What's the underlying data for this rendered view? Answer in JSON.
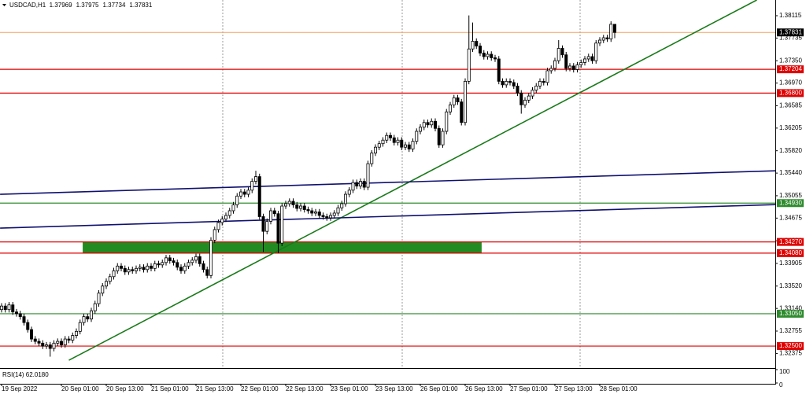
{
  "chart_data": {
    "type": "candlestick",
    "title": "USDCAD,H1",
    "categories": [
      "19 Sep 2022",
      null,
      null,
      null,
      null,
      null,
      null,
      null,
      null,
      null,
      null,
      null,
      null,
      null,
      null,
      null,
      "20 Sep 01:00",
      null,
      null,
      null,
      null,
      null,
      null,
      null,
      null,
      null,
      null,
      null,
      "20 Sep 13:00",
      null,
      null,
      null,
      null,
      null,
      null,
      null,
      null,
      null,
      null,
      null,
      "21 Sep 01:00",
      null,
      null,
      null,
      null,
      null,
      null,
      null,
      null,
      null,
      null,
      null,
      "21 Sep 13:00",
      null,
      null,
      null,
      null,
      null,
      null,
      null,
      null,
      null,
      null,
      null,
      "22 Sep 01:00",
      null,
      null,
      null,
      null,
      null,
      null,
      null,
      null,
      null,
      null,
      null,
      "22 Sep 13:00",
      null,
      null,
      null,
      null,
      null,
      null,
      null,
      null,
      null,
      null,
      null,
      "23 Sep 01:00",
      null,
      null,
      null,
      null,
      null,
      null,
      null,
      null,
      null,
      null,
      null,
      "23 Sep 13:00",
      null,
      null,
      null,
      null,
      null,
      null,
      null,
      null,
      null,
      null,
      null,
      "26 Sep 01:00",
      null,
      null,
      null,
      null,
      null,
      null,
      null,
      null,
      null,
      null,
      null,
      "26 Sep 13:00",
      null,
      null,
      null,
      null,
      null,
      null,
      null,
      null,
      null,
      null,
      null,
      "27 Sep 01:00",
      null,
      null,
      null,
      null,
      null,
      null,
      null,
      null,
      null,
      null,
      null,
      "27 Sep 13:00",
      null,
      null,
      null,
      null,
      null,
      null,
      null,
      null,
      null,
      null,
      null,
      "28 Sep 01:00",
      null,
      null,
      null,
      null
    ],
    "open": [
      1.3312,
      1.3318,
      1.3312,
      1.332,
      1.3308,
      1.3305,
      1.33,
      1.329,
      1.3278,
      1.3262,
      1.3258,
      1.3255,
      1.325,
      1.3252,
      1.3246,
      1.3255,
      1.3258,
      1.3252,
      1.3262,
      1.326,
      1.3268,
      1.3275,
      1.329,
      1.33,
      1.3296,
      1.331,
      1.3322,
      1.334,
      1.3352,
      1.336,
      1.3368,
      1.3378,
      1.3386,
      1.3382,
      1.3376,
      1.338,
      1.3378,
      1.3382,
      1.3384,
      1.338,
      1.3386,
      1.3382,
      1.339,
      1.3388,
      1.3392,
      1.34,
      1.3395,
      1.3392,
      1.3384,
      1.3378,
      1.3386,
      1.3392,
      1.3396,
      1.3402,
      1.339,
      1.338,
      1.337,
      1.343,
      1.3448,
      1.346,
      1.3466,
      1.3472,
      1.348,
      1.349,
      1.3505,
      1.3512,
      1.3508,
      1.3515,
      1.353,
      1.3538,
      1.347,
      1.3445,
      1.3462,
      1.348,
      1.3475,
      1.3425,
      1.3488,
      1.3492,
      1.3496,
      1.349,
      1.3484,
      1.3488,
      1.3482,
      1.348,
      1.3476,
      1.3478,
      1.3472,
      1.347,
      1.3468,
      1.3472,
      1.3476,
      1.3485,
      1.3492,
      1.3508,
      1.3515,
      1.3528,
      1.3522,
      1.353,
      1.352,
      1.356,
      1.3578,
      1.3588,
      1.3594,
      1.36,
      1.3608,
      1.3604,
      1.3596,
      1.36,
      1.3588,
      1.3592,
      1.3585,
      1.3598,
      1.3615,
      1.3622,
      1.363,
      1.3626,
      1.3632,
      1.362,
      1.3592,
      1.3615,
      1.3648,
      1.366,
      1.3672,
      1.3665,
      1.363,
      1.37,
      1.3755,
      1.3768,
      1.376,
      1.3748,
      1.3742,
      1.3746,
      1.374,
      1.3738,
      1.37,
      1.3694,
      1.37,
      1.3698,
      1.3692,
      1.368,
      1.366,
      1.3668,
      1.3675,
      1.3685,
      1.3692,
      1.37,
      1.3698,
      1.3718,
      1.3722,
      1.3735,
      1.3756,
      1.3745,
      1.3722,
      1.3726,
      1.372,
      1.3728,
      1.3732,
      1.3738,
      1.3742,
      1.3735,
      1.3765,
      1.377,
      1.3774,
      1.3772,
      1.37969
    ],
    "high": [
      1.3323,
      1.3323,
      1.3325,
      1.3325,
      1.3313,
      1.331,
      1.3305,
      1.3295,
      1.3283,
      1.3267,
      1.3263,
      1.326,
      1.3257,
      1.3257,
      1.326,
      1.3263,
      1.3263,
      1.3267,
      1.3267,
      1.3273,
      1.328,
      1.3295,
      1.3305,
      1.3305,
      1.3315,
      1.3327,
      1.3345,
      1.3357,
      1.3365,
      1.3373,
      1.3383,
      1.3391,
      1.3391,
      1.3387,
      1.3385,
      1.3385,
      1.3387,
      1.3389,
      1.3389,
      1.3391,
      1.3391,
      1.3395,
      1.3395,
      1.3397,
      1.3405,
      1.3405,
      1.34,
      1.3397,
      1.3389,
      1.3391,
      1.3397,
      1.3401,
      1.3407,
      1.3407,
      1.3395,
      1.3385,
      1.3435,
      1.3453,
      1.3465,
      1.3471,
      1.3477,
      1.3485,
      1.3495,
      1.351,
      1.3517,
      1.3517,
      1.352,
      1.3535,
      1.3548,
      1.3543,
      1.3475,
      1.3467,
      1.3485,
      1.3485,
      1.348,
      1.3493,
      1.3497,
      1.3501,
      1.3501,
      1.3495,
      1.3493,
      1.3493,
      1.3487,
      1.3485,
      1.3483,
      1.3483,
      1.3477,
      1.3475,
      1.3477,
      1.3481,
      1.349,
      1.3497,
      1.3513,
      1.352,
      1.3533,
      1.3533,
      1.3535,
      1.3535,
      1.3565,
      1.3583,
      1.3593,
      1.3599,
      1.3605,
      1.3613,
      1.3613,
      1.3609,
      1.3605,
      1.3605,
      1.3597,
      1.3597,
      1.3603,
      1.362,
      1.3627,
      1.3635,
      1.3635,
      1.3637,
      1.3637,
      1.3625,
      1.362,
      1.3653,
      1.3665,
      1.3677,
      1.3677,
      1.367,
      1.3705,
      1.3812,
      1.38,
      1.3773,
      1.3765,
      1.3753,
      1.3751,
      1.3751,
      1.3745,
      1.3743,
      1.3705,
      1.3705,
      1.3705,
      1.3703,
      1.3697,
      1.3685,
      1.3673,
      1.368,
      1.369,
      1.3697,
      1.3705,
      1.3705,
      1.3723,
      1.3727,
      1.374,
      1.377,
      1.3761,
      1.375,
      1.3731,
      1.3731,
      1.3733,
      1.3737,
      1.3743,
      1.3747,
      1.3747,
      1.377,
      1.3775,
      1.3779,
      1.3779,
      1.3802,
      1.37975
    ],
    "low": [
      1.3307,
      1.3307,
      1.3307,
      1.3303,
      1.33,
      1.3295,
      1.3285,
      1.3273,
      1.3257,
      1.3253,
      1.325,
      1.3245,
      1.3245,
      1.3232,
      1.3241,
      1.325,
      1.3247,
      1.3247,
      1.3255,
      1.3255,
      1.3263,
      1.327,
      1.3285,
      1.3291,
      1.3291,
      1.3305,
      1.3317,
      1.3335,
      1.3347,
      1.3355,
      1.3363,
      1.3373,
      1.3377,
      1.3371,
      1.3371,
      1.3373,
      1.3373,
      1.3377,
      1.3375,
      1.3375,
      1.3377,
      1.3377,
      1.3383,
      1.3383,
      1.3387,
      1.339,
      1.3387,
      1.3379,
      1.3373,
      1.3373,
      1.3381,
      1.3387,
      1.3391,
      1.3385,
      1.3375,
      1.3365,
      1.3365,
      1.3425,
      1.3443,
      1.3455,
      1.3461,
      1.3467,
      1.3475,
      1.3485,
      1.35,
      1.3503,
      1.3503,
      1.351,
      1.3525,
      1.3465,
      1.341,
      1.344,
      1.3457,
      1.347,
      1.3408,
      1.342,
      1.3483,
      1.3487,
      1.3485,
      1.3479,
      1.3479,
      1.3477,
      1.3475,
      1.3471,
      1.3471,
      1.3467,
      1.3465,
      1.3463,
      1.3463,
      1.3467,
      1.3471,
      1.348,
      1.3487,
      1.3503,
      1.351,
      1.3517,
      1.3517,
      1.3515,
      1.3515,
      1.3555,
      1.3573,
      1.3583,
      1.3589,
      1.3595,
      1.3599,
      1.3591,
      1.3591,
      1.3583,
      1.3583,
      1.358,
      1.358,
      1.3593,
      1.361,
      1.3617,
      1.3621,
      1.3621,
      1.3615,
      1.3587,
      1.3587,
      1.361,
      1.3643,
      1.3655,
      1.366,
      1.3625,
      1.3625,
      1.3695,
      1.375,
      1.3755,
      1.3743,
      1.3737,
      1.3737,
      1.3735,
      1.3733,
      1.3695,
      1.3689,
      1.3689,
      1.3693,
      1.3687,
      1.3675,
      1.3645,
      1.3655,
      1.3663,
      1.367,
      1.368,
      1.3687,
      1.3693,
      1.3693,
      1.3713,
      1.3717,
      1.373,
      1.374,
      1.3717,
      1.3717,
      1.3715,
      1.3715,
      1.3723,
      1.3727,
      1.3733,
      1.373,
      1.373,
      1.376,
      1.3765,
      1.3767,
      1.3767,
      1.37734
    ],
    "close": [
      1.3318,
      1.3312,
      1.332,
      1.3308,
      1.3305,
      1.33,
      1.329,
      1.3278,
      1.3262,
      1.3258,
      1.3255,
      1.325,
      1.3252,
      1.3246,
      1.3255,
      1.3258,
      1.3252,
      1.3262,
      1.326,
      1.3268,
      1.3275,
      1.329,
      1.33,
      1.3296,
      1.331,
      1.3322,
      1.334,
      1.3352,
      1.336,
      1.3368,
      1.3378,
      1.3386,
      1.3382,
      1.3376,
      1.338,
      1.3378,
      1.3382,
      1.3384,
      1.338,
      1.3386,
      1.3382,
      1.339,
      1.3388,
      1.3392,
      1.34,
      1.3395,
      1.3392,
      1.3384,
      1.3378,
      1.3386,
      1.3392,
      1.3396,
      1.3402,
      1.339,
      1.338,
      1.337,
      1.343,
      1.3448,
      1.346,
      1.3466,
      1.3472,
      1.348,
      1.349,
      1.3505,
      1.3512,
      1.3508,
      1.3515,
      1.353,
      1.3538,
      1.347,
      1.3445,
      1.3462,
      1.348,
      1.3475,
      1.3425,
      1.3488,
      1.3492,
      1.3496,
      1.349,
      1.3484,
      1.3488,
      1.3482,
      1.348,
      1.3476,
      1.3478,
      1.3472,
      1.347,
      1.3468,
      1.3472,
      1.3476,
      1.3485,
      1.3492,
      1.3508,
      1.3515,
      1.3528,
      1.3522,
      1.353,
      1.352,
      1.356,
      1.3578,
      1.3588,
      1.3594,
      1.36,
      1.3608,
      1.3604,
      1.3596,
      1.36,
      1.3588,
      1.3592,
      1.3585,
      1.3598,
      1.3615,
      1.3622,
      1.363,
      1.3626,
      1.3632,
      1.362,
      1.3592,
      1.3615,
      1.3648,
      1.366,
      1.3672,
      1.3665,
      1.363,
      1.37,
      1.3755,
      1.3768,
      1.376,
      1.3748,
      1.3742,
      1.3746,
      1.374,
      1.3738,
      1.37,
      1.3694,
      1.37,
      1.3698,
      1.3692,
      1.368,
      1.366,
      1.3668,
      1.3675,
      1.3685,
      1.3692,
      1.37,
      1.3698,
      1.3718,
      1.3722,
      1.3735,
      1.3756,
      1.3745,
      1.3722,
      1.3726,
      1.372,
      1.3728,
      1.3732,
      1.3738,
      1.3742,
      1.3735,
      1.3765,
      1.377,
      1.3774,
      1.3772,
      1.3797,
      1.37831
    ],
    "up_color": "#ffffff",
    "down_color": "#000000",
    "wick_color": "#000000",
    "current_price_color": "#f4a460",
    "ylim": [
      1.3214,
      1.38382
    ],
    "yticks": [
      1.38115,
      1.37735,
      {
        "value": 1.3735,
        "label": "1.37350"
      },
      {
        "value": 1.3697,
        "label": "1.36970"
      },
      1.36585,
      1.36205,
      {
        "value": 1.3582,
        "label": "1.35820"
      },
      {
        "value": 1.3544,
        "label": "1.35440"
      },
      1.35055,
      1.34675,
      {
        "value": 1.3429,
        "label": "1.34290"
      },
      1.33905,
      {
        "value": 1.3352,
        "label": "1.33520"
      },
      {
        "value": 1.3314,
        "label": "1.33140"
      },
      1.32755,
      1.32375
    ],
    "levels": [
      {
        "value": 1.37204,
        "color": "#e00000"
      },
      {
        "value": 1.368,
        "label": "1.36800",
        "color": "#e00000"
      },
      {
        "value": 1.3493,
        "label": "1.34930",
        "color": "#2e8b2e"
      },
      {
        "value": 1.3427,
        "label": "1.34270",
        "color": "#e00000"
      },
      {
        "value": 1.3408,
        "label": "1.34080",
        "color": "#e00000"
      },
      {
        "value": 1.3305,
        "label": "1.33050",
        "color": "#2e8b2e"
      },
      {
        "value": 1.325,
        "label": "1.32500",
        "color": "#e00000"
      }
    ],
    "zone": {
      "from": 21.7,
      "to": 128.4,
      "low": 1.3408,
      "high": 1.3427,
      "color": "#228b22"
    },
    "trendlines": [
      {
        "color": "#1a7a1a",
        "x": [
          18,
          202
        ],
        "y": [
          1.32259,
          1.38382
        ]
      },
      {
        "color": "#101070",
        "x": [
          -0.4,
          215
        ],
        "y": [
          1.3508,
          1.35495
        ]
      },
      {
        "color": "#101070",
        "x": [
          -0.4,
          215
        ],
        "y": [
          1.34505,
          1.3492
        ]
      }
    ],
    "rsi": {
      "label": "RSI(14) 62.0180",
      "ylim": [
        0,
        100
      ],
      "yticks": [
        100,
        0
      ]
    }
  }
}
